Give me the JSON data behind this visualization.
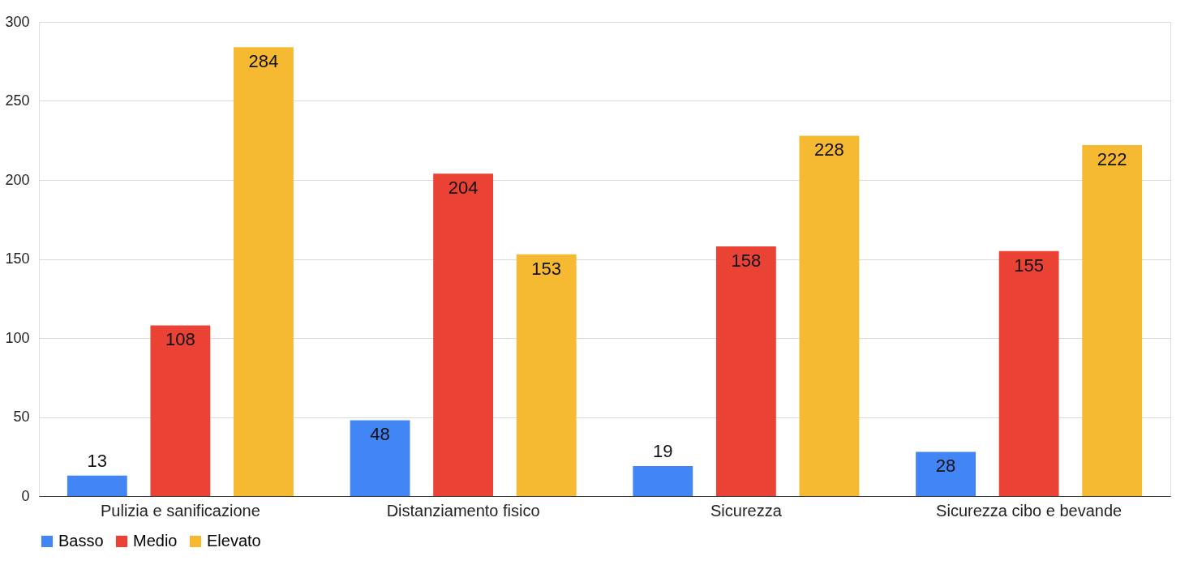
{
  "chart_data": {
    "type": "bar",
    "categories": [
      "Pulizia e sanificazione",
      "Distanziamento fisico",
      "Sicurezza",
      "Sicurezza cibo e bevande"
    ],
    "series": [
      {
        "name": "Basso",
        "color": "#4285f4",
        "values": [
          13,
          48,
          19,
          28
        ]
      },
      {
        "name": "Medio",
        "color": "#ea4335",
        "values": [
          108,
          204,
          158,
          155
        ]
      },
      {
        "name": "Elevato",
        "color": "#f6b932",
        "values": [
          284,
          153,
          228,
          222
        ]
      }
    ],
    "ylim": [
      0,
      300
    ],
    "yticks": [
      0,
      50,
      100,
      150,
      200,
      250,
      300
    ],
    "grid": "y",
    "legend": "bottom",
    "data_labels": true
  }
}
